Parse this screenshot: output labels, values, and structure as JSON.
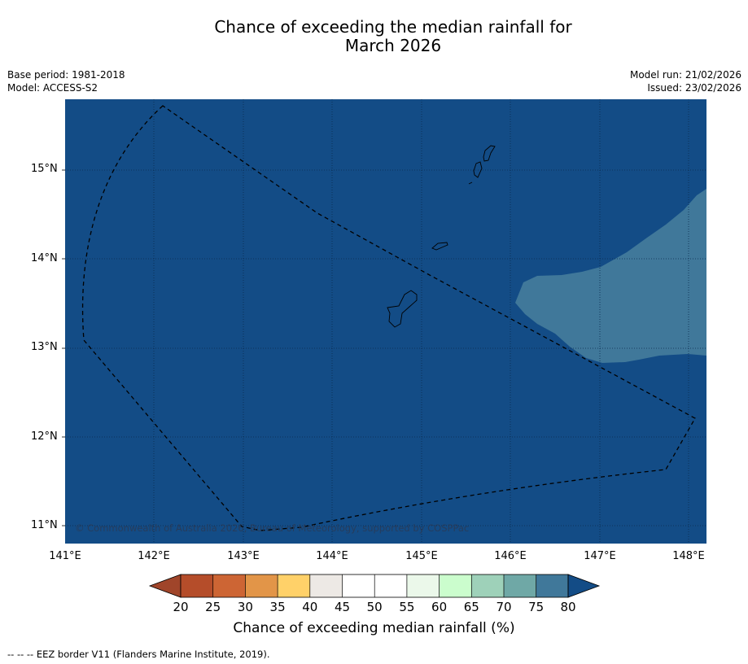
{
  "title": {
    "line1": "Chance of exceeding the median rainfall for",
    "line2": "March 2026"
  },
  "metadata": {
    "base_period": "Base period: 1981-2018",
    "model": "Model: ACCESS-S2",
    "model_run": "Model run: 21/02/2026",
    "issued": "Issued: 23/02/2026"
  },
  "map": {
    "ocean_color": "#134c86",
    "anomaly_color": "#40789a",
    "lat_labels": [
      "15°N",
      "14°N",
      "13°N",
      "12°N",
      "11°N"
    ],
    "lon_labels": [
      "141°E",
      "142°E",
      "143°E",
      "144°E",
      "145°E",
      "146°E",
      "147°E",
      "148°E"
    ],
    "copyright": "© Commonwealth of Australia 2026, Bureau of Meteorology, supported by COSPPac"
  },
  "legend": {
    "colors": [
      "#a0452a",
      "#b54d2a",
      "#cd6534",
      "#e29548",
      "#ffd169",
      "#ede9e5",
      "#ffffff",
      "#ffffff",
      "#ebf8ea",
      "#cbfdcd",
      "#9ed1b9",
      "#6fa8a6",
      "#40789a",
      "#134c86"
    ],
    "ticks": [
      "20",
      "25",
      "30",
      "35",
      "40",
      "45",
      "50",
      "55",
      "60",
      "65",
      "70",
      "75",
      "80"
    ],
    "label": "Chance of exceeding median rainfall (%)"
  },
  "footnote": "--  --  -- EEZ border V11 (Flanders Marine Institute, 2019)."
}
